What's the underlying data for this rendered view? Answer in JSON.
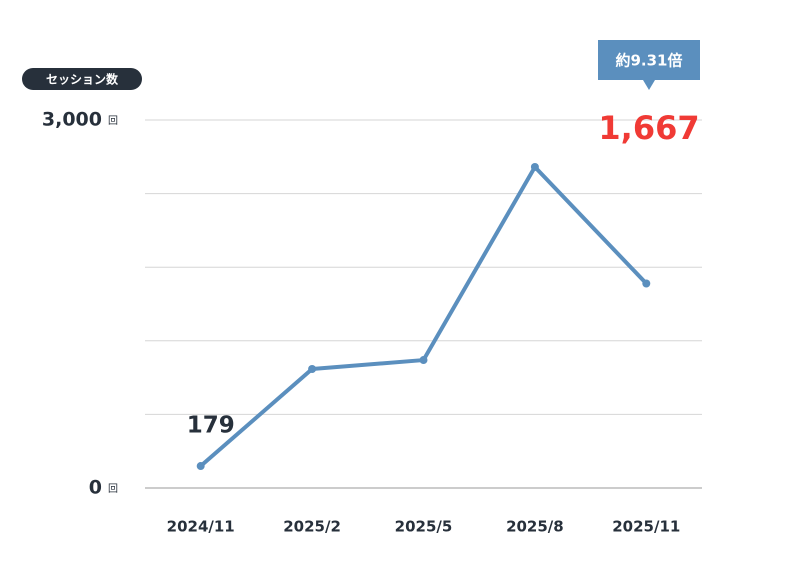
{
  "chart_data": {
    "type": "line",
    "y_label": "セッション数",
    "y_unit": "回",
    "categories": [
      "2024/11",
      "2025/2",
      "2025/5",
      "2025/8",
      "2025/11"
    ],
    "series": [
      {
        "color": "#5b8fbe",
        "values": [
          179,
          970,
          1043,
          2617,
          1667
        ],
        "value_labels": [
          "179",
          null,
          null,
          null,
          "1,667"
        ]
      }
    ],
    "annotation": "約9.31倍",
    "ylim": [
      0,
      3000
    ],
    "yticks": [
      0,
      {
        "value": 600,
        "label": null
      },
      {
        "value": 1200,
        "label": null
      },
      {
        "value": 1800,
        "label": null
      },
      {
        "value": 2400,
        "label": null
      },
      {
        "value": 3000,
        "label": "3,000"
      }
    ],
    "grid": true
  }
}
